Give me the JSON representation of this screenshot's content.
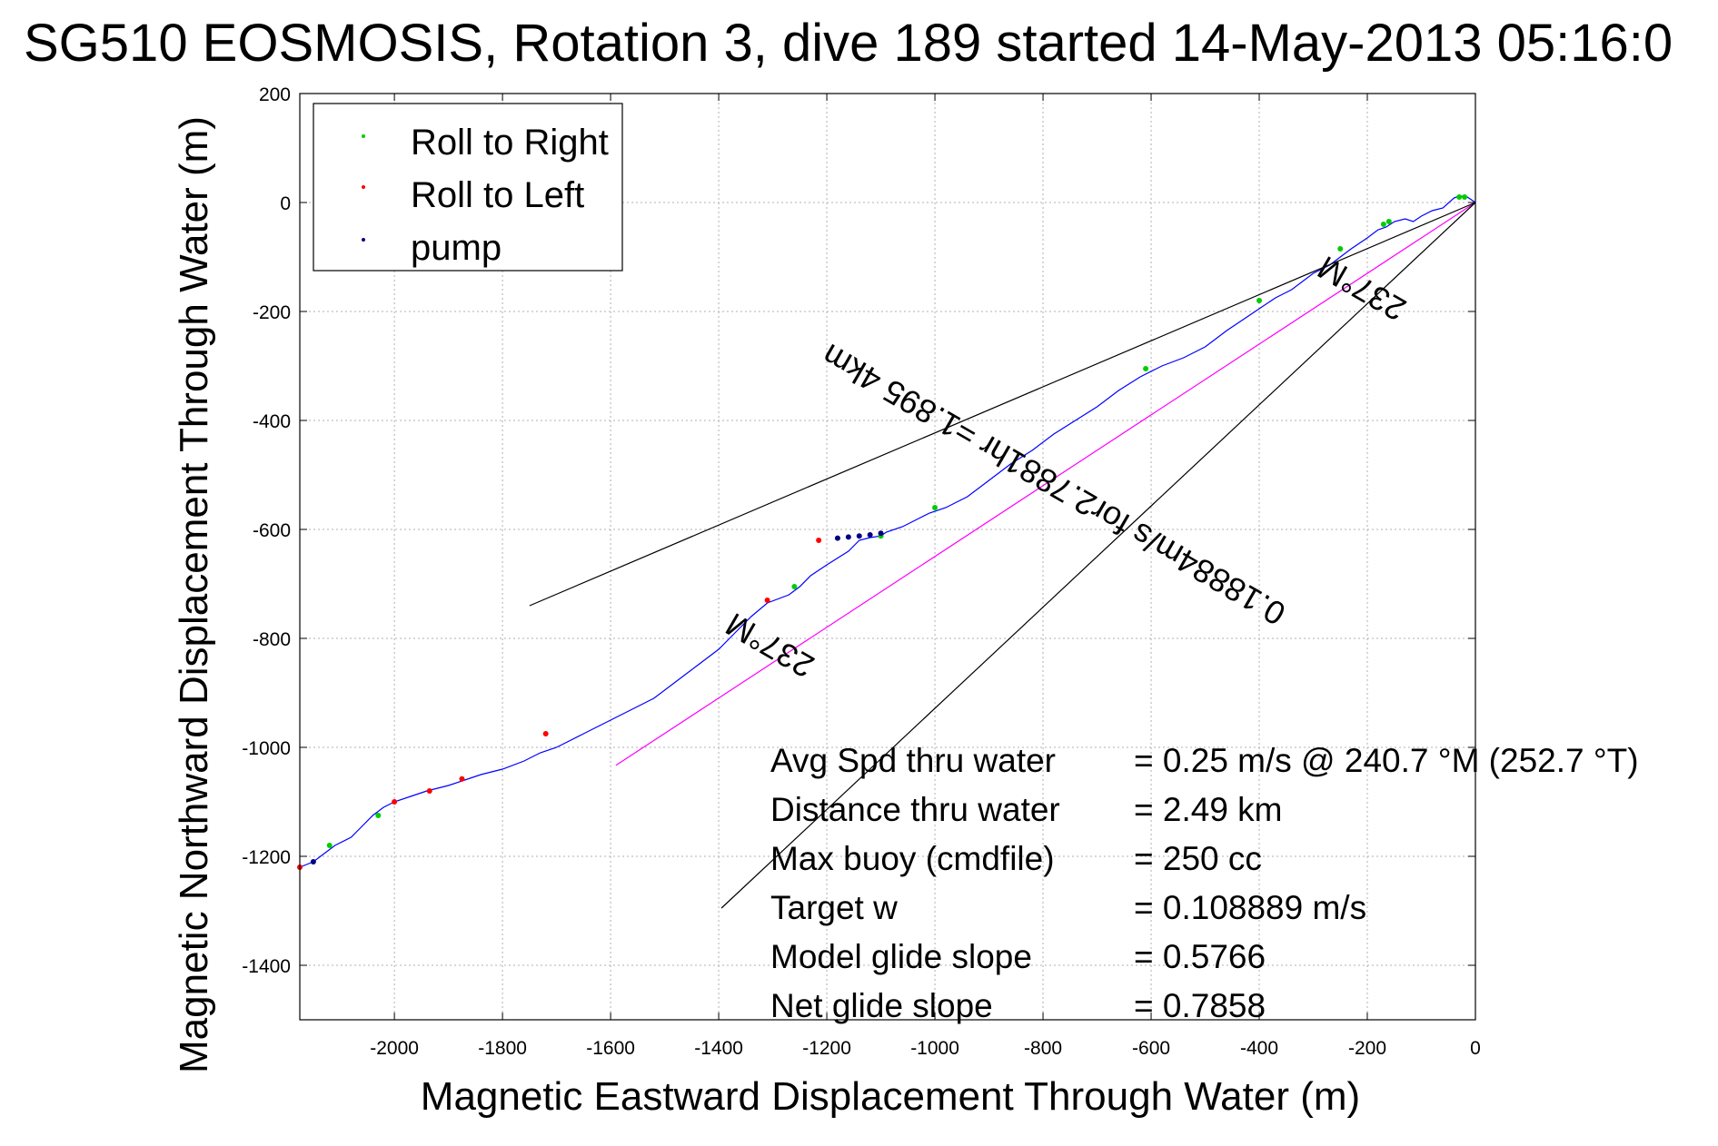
{
  "chart_data": {
    "type": "line",
    "title": "SG510 EOSMOSIS, Rotation 3, dive 189 started 14-May-2013 05:16:0",
    "xlabel": "Magnetic Eastward Displacement Through Water (m)",
    "ylabel": "Magnetic Northward Displacement Through Water (m)",
    "xlim": [
      -2175,
      0
    ],
    "ylim": [
      -1500,
      200
    ],
    "xticks": [
      -2000,
      -1800,
      -1600,
      -1400,
      -1200,
      -1000,
      -800,
      -600,
      -400,
      -200,
      0
    ],
    "yticks": [
      200,
      0,
      -200,
      -400,
      -600,
      -800,
      -1000,
      -1200,
      -1400
    ],
    "grid": true,
    "legend_position": "top-left",
    "legend": [
      {
        "label": "Roll to Right",
        "color": "#00cc00"
      },
      {
        "label": "Roll to Left",
        "color": "#ff0000"
      },
      {
        "label": "pump",
        "color": "#000080"
      }
    ],
    "series": [
      {
        "type": "line",
        "color": "#0000ff",
        "x": [
          0,
          -15,
          -30,
          -40,
          -60,
          -80,
          -100,
          -115,
          -130,
          -150,
          -165,
          -180,
          -200,
          -230,
          -250,
          -270,
          -300,
          -340,
          -370,
          -400,
          -430,
          -460,
          -500,
          -540,
          -580,
          -620,
          -660,
          -700,
          -740,
          -780,
          -820,
          -860,
          -900,
          -940,
          -980,
          -1010,
          -1030,
          -1060,
          -1090,
          -1100,
          -1120,
          -1140,
          -1160,
          -1200,
          -1230,
          -1250,
          -1270,
          -1310,
          -1340,
          -1370,
          -1400,
          -1440,
          -1480,
          -1520,
          -1560,
          -1600,
          -1650,
          -1700,
          -1730,
          -1760,
          -1800,
          -1840,
          -1870,
          -1900,
          -1940,
          -1970,
          -2000,
          -2020,
          -2040,
          -2060,
          -2080,
          -2110,
          -2130,
          -2150,
          -2175
        ],
        "y": [
          0,
          10,
          12,
          8,
          -10,
          -15,
          -25,
          -35,
          -30,
          -35,
          -45,
          -50,
          -65,
          -85,
          -100,
          -115,
          -130,
          -160,
          -175,
          -195,
          -215,
          -235,
          -265,
          -285,
          -300,
          -320,
          -345,
          -375,
          -400,
          -425,
          -455,
          -480,
          -510,
          -540,
          -560,
          -570,
          -580,
          -595,
          -605,
          -612,
          -615,
          -620,
          -640,
          -665,
          -685,
          -705,
          -720,
          -735,
          -760,
          -790,
          -820,
          -850,
          -880,
          -910,
          -930,
          -950,
          -975,
          -1000,
          -1010,
          -1025,
          -1040,
          -1050,
          -1060,
          -1070,
          -1080,
          -1090,
          -1100,
          -1110,
          -1125,
          -1145,
          -1165,
          -1180,
          -1195,
          -1210,
          -1220
        ]
      },
      {
        "type": "line",
        "color": "#ff00ff",
        "x": [
          0,
          -1590
        ],
        "y": [
          0,
          -1033
        ]
      },
      {
        "type": "line",
        "color": "#000000",
        "x": [
          0,
          -1750
        ],
        "y": [
          0,
          -740
        ]
      },
      {
        "type": "line",
        "color": "#000000",
        "x": [
          0,
          -1395
        ],
        "y": [
          0,
          -1295
        ]
      }
    ],
    "markers": [
      {
        "label": "Roll to Right",
        "color": "#00cc00",
        "x": [
          -30,
          -20,
          -170,
          -160,
          -250,
          -400,
          -610,
          -1000,
          -1100,
          -1260,
          -2030,
          -2120
        ],
        "y": [
          10,
          10,
          -40,
          -35,
          -85,
          -180,
          -305,
          -560,
          -612,
          -705,
          -1125,
          -1180
        ]
      },
      {
        "label": "Roll to Left",
        "color": "#ff0000",
        "x": [
          -1310,
          -1215,
          -1720,
          -1875,
          -1935,
          -2000,
          -2175
        ],
        "y": [
          -730,
          -620,
          -975,
          -1058,
          -1080,
          -1100,
          -1220
        ]
      },
      {
        "label": "pump",
        "color": "#000080",
        "x": [
          -1100,
          -1120,
          -1140,
          -1160,
          -1180,
          -2150
        ],
        "y": [
          -607,
          -610,
          -612,
          -614,
          -616,
          -1210
        ]
      }
    ],
    "annotations": [
      {
        "text": "237°M",
        "x": -200,
        "y": -140,
        "rotation": 210
      },
      {
        "text": "237°M",
        "x": -1295,
        "y": -795,
        "rotation": 210
      },
      {
        "text": "0.18884m/s for2.7881hr =1.895 4km",
        "x": -770,
        "y": -500,
        "rotation": 210
      }
    ],
    "stats": [
      {
        "label": "Avg Spd thru water",
        "value": "=  0.25 m/s @ 240.7 °M (252.7 °T)"
      },
      {
        "label": "Distance thru water",
        "value": "=  2.49 km"
      },
      {
        "label": "Max buoy (cmdfile)",
        "value": "= 250 cc"
      },
      {
        "label": "Target w",
        "value": "= 0.108889 m/s"
      },
      {
        "label": "Model glide slope",
        "value": "= 0.5766"
      },
      {
        "label": "Net glide slope",
        "value": "= 0.7858"
      }
    ]
  }
}
